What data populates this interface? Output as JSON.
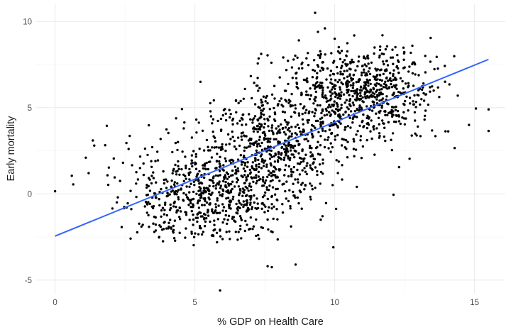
{
  "chart_data": {
    "type": "scatter",
    "title": "",
    "xlabel": "% GDP on Health Care",
    "ylabel": "Early mortality",
    "xlim": [
      -0.7,
      16.1
    ],
    "ylim": [
      -5.75,
      11.0
    ],
    "x_ticks": [
      0,
      5,
      10,
      15
    ],
    "y_ticks": [
      -5,
      0,
      5,
      10
    ],
    "x_tick_labels": [
      "0",
      "5",
      "10",
      "15"
    ],
    "y_tick_labels": [
      "-5",
      "0",
      "5",
      "10"
    ],
    "grid": true,
    "legend": "none",
    "point_color": "#000000",
    "trend_line": {
      "color": "#3366ff",
      "x": [
        0,
        15.5
      ],
      "y": [
        -2.45,
        7.8
      ]
    },
    "clusters": [
      {
        "center_x": 5.3,
        "center_y": 0.0,
        "spread_x": 1.45,
        "spread_y": 1.45,
        "count": 620
      },
      {
        "center_x": 7.9,
        "center_y": 2.9,
        "spread_x": 1.25,
        "spread_y": 1.7,
        "count": 620
      },
      {
        "center_x": 10.9,
        "center_y": 5.9,
        "spread_x": 1.3,
        "spread_y": 1.4,
        "count": 720
      }
    ],
    "points": [
      {
        "x": 9.3,
        "y": 10.5
      },
      {
        "x": 9.65,
        "y": 9.6
      },
      {
        "x": 9.4,
        "y": 9.4
      },
      {
        "x": 5.9,
        "y": -5.6
      },
      {
        "x": 7.75,
        "y": -4.25
      },
      {
        "x": 7.6,
        "y": -4.2
      },
      {
        "x": 8.6,
        "y": -4.1
      },
      {
        "x": 0.0,
        "y": 0.15
      },
      {
        "x": 0.6,
        "y": 1.05
      },
      {
        "x": 0.65,
        "y": 0.55
      },
      {
        "x": 1.1,
        "y": 2.1
      },
      {
        "x": 1.35,
        "y": 3.1
      },
      {
        "x": 1.4,
        "y": 2.8
      },
      {
        "x": 1.2,
        "y": 1.2
      },
      {
        "x": 1.85,
        "y": 3.95
      },
      {
        "x": 2.1,
        "y": 2.05
      },
      {
        "x": 2.05,
        "y": -0.85
      },
      {
        "x": 2.55,
        "y": 2.95
      },
      {
        "x": 2.6,
        "y": -0.55
      },
      {
        "x": 15.5,
        "y": 4.9
      },
      {
        "x": 15.5,
        "y": 3.65
      },
      {
        "x": 15.05,
        "y": 4.95
      },
      {
        "x": 14.8,
        "y": 4.0
      },
      {
        "x": 14.4,
        "y": 5.7
      },
      {
        "x": 14.1,
        "y": 6.35
      },
      {
        "x": 13.6,
        "y": 3.35
      },
      {
        "x": 12.3,
        "y": 1.55
      },
      {
        "x": 12.1,
        "y": -0.05
      },
      {
        "x": 9.95,
        "y": -3.1
      },
      {
        "x": 9.5,
        "y": -1.5
      },
      {
        "x": 10.0,
        "y": 9.0
      },
      {
        "x": 5.2,
        "y": 6.5
      }
    ]
  }
}
